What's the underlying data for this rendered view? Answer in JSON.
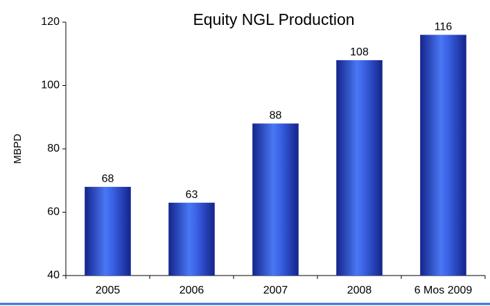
{
  "chart_data": {
    "type": "bar",
    "title": "Equity NGL Production",
    "y_label": "MBPD",
    "categories": [
      "2005",
      "2006",
      "2007",
      "2008",
      "6 Mos 2009"
    ],
    "values": [
      68,
      63,
      88,
      108,
      116
    ],
    "color": "#2b4fd8",
    "ylim": [
      40,
      120
    ],
    "yticks": [
      40,
      60,
      80,
      100,
      120
    ],
    "grid": false
  }
}
